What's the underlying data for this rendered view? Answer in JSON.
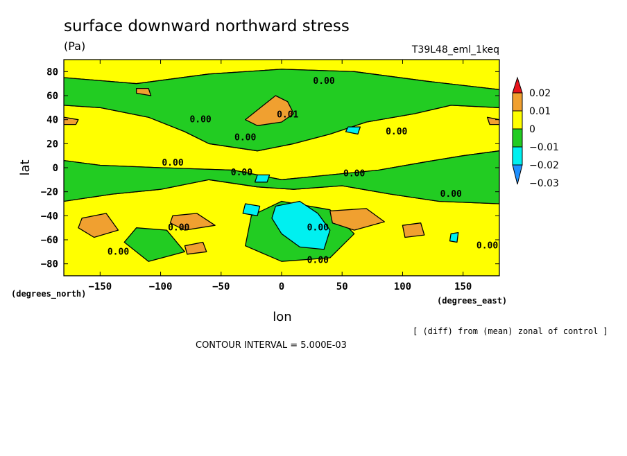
{
  "chart_data": {
    "type": "heatmap",
    "title": "surface downward northward stress",
    "units": "(Pa)",
    "run_label": "T39L48_eml_1keq",
    "xlabel": "lon",
    "ylabel": "lat",
    "x_units_label": "(degrees_east)",
    "y_units_label": "(degrees_north)",
    "xlim": [
      -180,
      180
    ],
    "ylim": [
      -90,
      90
    ],
    "x_ticks": [
      -150,
      -100,
      -50,
      0,
      50,
      100,
      150
    ],
    "y_ticks": [
      80,
      60,
      40,
      20,
      0,
      -20,
      -40,
      -60,
      -80
    ],
    "colorbar": {
      "levels": [
        "0.02",
        "0.01",
        "0",
        "-0.01",
        "-0.02",
        "-0.03"
      ],
      "bins": [
        {
          "range": [
            0.02,
            0.03
          ],
          "color": "#e8141c"
        },
        {
          "range": [
            0.01,
            0.02
          ],
          "color": "#f0a030"
        },
        {
          "range": [
            0.0,
            0.01
          ],
          "color": "#ffff00"
        },
        {
          "range": [
            -0.01,
            0.0
          ],
          "color": "#22cc22"
        },
        {
          "range": [
            -0.02,
            -0.01
          ],
          "color": "#00f0f0"
        },
        {
          "range": [
            -0.03,
            -0.02
          ],
          "color": "#1e90ff"
        }
      ]
    },
    "grid": false,
    "note": "[ (diff) from (mean) zonal of control ]",
    "contour_interval": "CONTOUR INTERVAL = 5.000E-03",
    "contour_labels": [
      {
        "text": "0.00",
        "lon": 35,
        "lat": 72
      },
      {
        "text": "0.00",
        "lon": -67,
        "lat": 40
      },
      {
        "text": "0.01",
        "lon": 5,
        "lat": 44
      },
      {
        "text": "0.00",
        "lon": -30,
        "lat": 25
      },
      {
        "text": "0.00",
        "lon": 95,
        "lat": 30
      },
      {
        "text": "0.00",
        "lon": -90,
        "lat": 4
      },
      {
        "text": "0.00",
        "lon": -33,
        "lat": -4
      },
      {
        "text": "0.00",
        "lon": 60,
        "lat": -5
      },
      {
        "text": "0.00",
        "lon": 140,
        "lat": -22
      },
      {
        "text": "0.00",
        "lon": -85,
        "lat": -50
      },
      {
        "text": "0.00",
        "lon": 30,
        "lat": -50
      },
      {
        "text": "0.00",
        "lon": -135,
        "lat": -70
      },
      {
        "text": "0.00",
        "lon": 30,
        "lat": -77
      },
      {
        "text": "0.00",
        "lon": 170,
        "lat": -65
      }
    ],
    "regions": [
      {
        "level": "yellow",
        "polygons": [
          [
            [
              -180,
              90
            ],
            [
              180,
              90
            ],
            [
              180,
              65
            ],
            [
              120,
              72
            ],
            [
              60,
              80
            ],
            [
              0,
              82
            ],
            [
              -60,
              78
            ],
            [
              -120,
              70
            ],
            [
              -180,
              75
            ]
          ],
          [
            [
              -180,
              52
            ],
            [
              -150,
              50
            ],
            [
              -110,
              42
            ],
            [
              -80,
              30
            ],
            [
              -60,
              20
            ],
            [
              -20,
              14
            ],
            [
              10,
              20
            ],
            [
              40,
              28
            ],
            [
              70,
              38
            ],
            [
              110,
              45
            ],
            [
              140,
              52
            ],
            [
              180,
              50
            ],
            [
              180,
              14
            ],
            [
              150,
              10
            ],
            [
              120,
              5
            ],
            [
              80,
              -2
            ],
            [
              40,
              -6
            ],
            [
              0,
              -10
            ],
            [
              -40,
              -2
            ],
            [
              -100,
              0
            ],
            [
              -150,
              2
            ],
            [
              -180,
              6
            ]
          ],
          [
            [
              -180,
              -28
            ],
            [
              -140,
              -22
            ],
            [
              -100,
              -18
            ],
            [
              -60,
              -10
            ],
            [
              -20,
              -16
            ],
            [
              10,
              -18
            ],
            [
              50,
              -15
            ],
            [
              90,
              -22
            ],
            [
              130,
              -28
            ],
            [
              180,
              -30
            ],
            [
              180,
              -90
            ],
            [
              -180,
              -90
            ]
          ]
        ]
      },
      {
        "level": "green",
        "polygons": [
          [
            [
              -180,
              75
            ],
            [
              -120,
              70
            ],
            [
              -60,
              78
            ],
            [
              0,
              82
            ],
            [
              60,
              80
            ],
            [
              120,
              72
            ],
            [
              180,
              65
            ],
            [
              180,
              50
            ],
            [
              140,
              52
            ],
            [
              110,
              45
            ],
            [
              70,
              38
            ],
            [
              40,
              28
            ],
            [
              10,
              20
            ],
            [
              -20,
              14
            ],
            [
              -60,
              20
            ],
            [
              -80,
              30
            ],
            [
              -110,
              42
            ],
            [
              -150,
              50
            ],
            [
              -180,
              52
            ]
          ],
          [
            [
              -180,
              6
            ],
            [
              -150,
              2
            ],
            [
              -100,
              0
            ],
            [
              -40,
              -2
            ],
            [
              0,
              -10
            ],
            [
              40,
              -6
            ],
            [
              80,
              -2
            ],
            [
              120,
              5
            ],
            [
              150,
              10
            ],
            [
              180,
              14
            ],
            [
              180,
              -30
            ],
            [
              130,
              -28
            ],
            [
              90,
              -22
            ],
            [
              50,
              -15
            ],
            [
              10,
              -18
            ],
            [
              -20,
              -16
            ],
            [
              -60,
              -10
            ],
            [
              -100,
              -18
            ],
            [
              -140,
              -22
            ],
            [
              -180,
              -28
            ]
          ],
          [
            [
              -25,
              -40
            ],
            [
              0,
              -28
            ],
            [
              40,
              -35
            ],
            [
              60,
              -55
            ],
            [
              40,
              -75
            ],
            [
              0,
              -78
            ],
            [
              -30,
              -65
            ]
          ],
          [
            [
              -120,
              -50
            ],
            [
              -95,
              -52
            ],
            [
              -80,
              -70
            ],
            [
              -110,
              -78
            ],
            [
              -130,
              -62
            ]
          ]
        ]
      },
      {
        "level": "orange",
        "polygons": [
          [
            [
              -30,
              40
            ],
            [
              -15,
              52
            ],
            [
              -5,
              60
            ],
            [
              5,
              55
            ],
            [
              10,
              45
            ],
            [
              0,
              38
            ],
            [
              -20,
              35
            ]
          ],
          [
            [
              -165,
              -42
            ],
            [
              -145,
              -38
            ],
            [
              -135,
              -52
            ],
            [
              -155,
              -58
            ],
            [
              -168,
              -50
            ]
          ],
          [
            [
              -90,
              -40
            ],
            [
              -70,
              -38
            ],
            [
              -55,
              -48
            ],
            [
              -80,
              -52
            ],
            [
              -92,
              -46
            ]
          ],
          [
            [
              40,
              -36
            ],
            [
              70,
              -34
            ],
            [
              85,
              -45
            ],
            [
              60,
              -52
            ],
            [
              42,
              -46
            ]
          ],
          [
            [
              -80,
              -65
            ],
            [
              -65,
              -62
            ],
            [
              -62,
              -70
            ],
            [
              -78,
              -72
            ]
          ],
          [
            [
              100,
              -48
            ],
            [
              115,
              -46
            ],
            [
              118,
              -56
            ],
            [
              102,
              -58
            ]
          ],
          [
            [
              -120,
              62
            ],
            [
              -108,
              60
            ],
            [
              -110,
              66
            ],
            [
              -120,
              66
            ]
          ],
          [
            [
              170,
              42
            ],
            [
              180,
              40
            ],
            [
              180,
              36
            ],
            [
              172,
              36
            ]
          ],
          [
            [
              -180,
              42
            ],
            [
              -168,
              40
            ],
            [
              -170,
              36
            ],
            [
              -180,
              36
            ]
          ]
        ]
      },
      {
        "level": "cyan",
        "polygons": [
          [
            [
              -5,
              -32
            ],
            [
              15,
              -28
            ],
            [
              30,
              -38
            ],
            [
              40,
              -52
            ],
            [
              35,
              -68
            ],
            [
              15,
              -66
            ],
            [
              0,
              -55
            ],
            [
              -8,
              -42
            ]
          ],
          [
            [
              -30,
              -30
            ],
            [
              -18,
              -32
            ],
            [
              -20,
              -40
            ],
            [
              -32,
              -38
            ]
          ],
          [
            [
              -20,
              -6
            ],
            [
              -10,
              -6
            ],
            [
              -12,
              -12
            ],
            [
              -22,
              -12
            ]
          ],
          [
            [
              55,
              34
            ],
            [
              65,
              34
            ],
            [
              63,
              28
            ],
            [
              53,
              30
            ]
          ],
          [
            [
              140,
              -55
            ],
            [
              146,
              -54
            ],
            [
              145,
              -62
            ],
            [
              139,
              -61
            ]
          ]
        ]
      }
    ]
  }
}
